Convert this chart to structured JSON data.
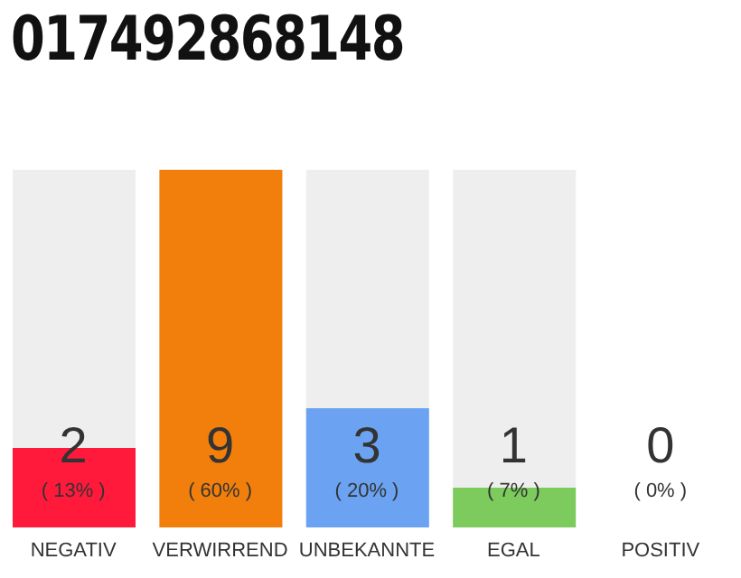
{
  "chart_data": {
    "type": "bar",
    "title": "017492868148",
    "categories": [
      "NEGATIV",
      "VERWIRREND",
      "UNBEKANNTE",
      "EGAL",
      "POSITIV"
    ],
    "values": [
      2,
      9,
      3,
      1,
      0
    ],
    "colors": [
      "#ff1a3c",
      "#f27f0c",
      "#6ba3f2",
      "#7ccb5c",
      "#e0e0e0"
    ],
    "data_labels": true,
    "annotations": [
      "( 13% )",
      "( 60% )",
      "( 20% )",
      "( 7% )",
      "( 0% )"
    ],
    "grid": false,
    "legend": false
  }
}
